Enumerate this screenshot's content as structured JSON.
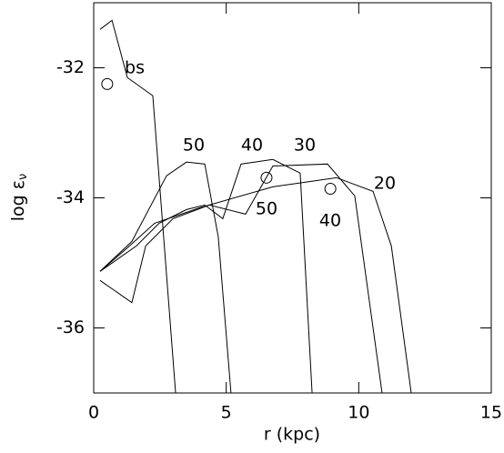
{
  "chart_data": {
    "type": "line",
    "x_label": "r (kpc)",
    "y_label": "log ε",
    "y_label_sub": "ν",
    "xlim": [
      0,
      15
    ],
    "ylim": [
      -37,
      -31
    ],
    "xticks": [
      0,
      5,
      10,
      15
    ],
    "yticks": [
      -36,
      -34,
      -32
    ],
    "series": [
      {
        "name": "bs",
        "color": "#000000",
        "x": [
          0.24,
          0.69,
          1.27,
          2.23,
          3.09
        ],
        "values": [
          -31.41,
          -31.27,
          -32.15,
          -32.43,
          -37.0
        ]
      },
      {
        "name": "50",
        "color": "#000000",
        "x": [
          0.24,
          1.44,
          2.75,
          3.5,
          4.19,
          4.7,
          5.18
        ],
        "values": [
          -35.13,
          -34.67,
          -33.66,
          -33.45,
          -33.48,
          -34.6,
          -37.0
        ]
      },
      {
        "name": "40",
        "color": "#000000",
        "x": [
          0.24,
          1.61,
          2.47,
          3.5,
          4.19,
          4.87,
          5.56,
          6.76,
          7.79,
          8.24
        ],
        "values": [
          -35.13,
          -34.74,
          -34.39,
          -34.18,
          -34.11,
          -34.32,
          -33.48,
          -33.41,
          -33.62,
          -37.0
        ]
      },
      {
        "name": "30",
        "color": "#000000",
        "x": [
          0.24,
          1.44,
          1.96,
          2.99,
          4.36,
          5.73,
          6.76,
          8.82,
          9.85,
          10.88
        ],
        "values": [
          -35.27,
          -35.61,
          -34.74,
          -34.32,
          -34.11,
          -34.25,
          -33.51,
          -33.48,
          -33.97,
          -37.0
        ]
      },
      {
        "name": "20",
        "color": "#000000",
        "x": [
          0.24,
          1.27,
          2.3,
          4.02,
          6.76,
          9.16,
          10.54,
          11.23,
          11.98
        ],
        "values": [
          -35.13,
          -34.77,
          -34.39,
          -34.15,
          -33.83,
          -33.69,
          -33.9,
          -34.74,
          -37.0
        ]
      }
    ],
    "points": {
      "x": [
        0.51,
        6.52,
        8.93
      ],
      "values": [
        -32.25,
        -33.69,
        -33.86
      ]
    },
    "annotations": [
      "50",
      "40"
    ]
  }
}
